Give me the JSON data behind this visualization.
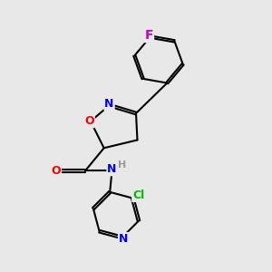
{
  "background_color": "#e8e8e8",
  "bond_color": "#000000",
  "atom_colors": {
    "O": "#ff0000",
    "N": "#0000ff",
    "F": "#cc00cc",
    "Cl": "#00bb00",
    "H": "#999999",
    "C": "#000000"
  },
  "font_size": 9,
  "figsize": [
    3.0,
    3.0
  ],
  "dpi": 100
}
